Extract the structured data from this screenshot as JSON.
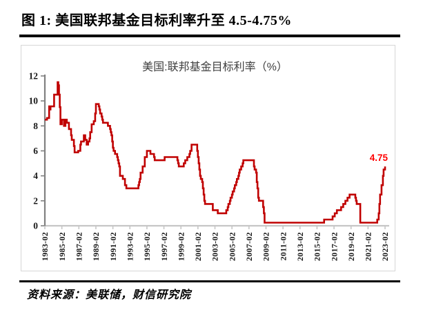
{
  "figure": {
    "title": "图 1:  美国联邦基金目标利率升至 4.5-4.75%"
  },
  "source": {
    "text": "资料来源：美联储，财信研究院"
  },
  "chart_data": {
    "type": "line",
    "title": "美国:联邦基金目标利率（%）",
    "xlabel": "",
    "ylabel": "",
    "ylim": [
      0,
      12
    ],
    "grid": false,
    "legend_position": "none",
    "y_ticks": [
      0,
      2,
      4,
      6,
      8,
      10,
      12
    ],
    "x_ticks": [
      "1983-02",
      "1985-02",
      "1987-02",
      "1989-02",
      "1991-02",
      "1993-02",
      "1995-02",
      "1997-02",
      "1999-02",
      "2001-02",
      "2003-02",
      "2005-02",
      "2007-02",
      "2009-02",
      "2011-02",
      "2013-02",
      "2015-02",
      "2017-02",
      "2019-02",
      "2021-02",
      "2023-02"
    ],
    "x_start": "1983-02",
    "x_end": "2023-02",
    "end_label": "4.75",
    "series_name": "美国:联邦基金目标利率(%)",
    "step_breakpoints": [
      [
        "1983-02",
        8.5
      ],
      [
        "1983-05",
        8.63
      ],
      [
        "1983-08",
        9.56
      ],
      [
        "1983-09",
        9.31
      ],
      [
        "1983-10",
        9.56
      ],
      [
        "1984-03",
        10.5
      ],
      [
        "1984-08",
        11.5
      ],
      [
        "1984-09",
        11.25
      ],
      [
        "1984-10",
        10.5
      ],
      [
        "1984-11",
        9.5
      ],
      [
        "1984-12",
        8.13
      ],
      [
        "1985-02",
        8.5
      ],
      [
        "1985-05",
        8.0
      ],
      [
        "1985-07",
        8.5
      ],
      [
        "1985-09",
        8.25
      ],
      [
        "1985-12",
        7.75
      ],
      [
        "1986-03",
        7.25
      ],
      [
        "1986-04",
        6.88
      ],
      [
        "1986-07",
        6.38
      ],
      [
        "1986-08",
        5.88
      ],
      [
        "1987-01",
        6.0
      ],
      [
        "1987-04",
        6.5
      ],
      [
        "1987-05",
        6.75
      ],
      [
        "1987-09",
        7.25
      ],
      [
        "1987-11",
        6.88
      ],
      [
        "1988-01",
        6.5
      ],
      [
        "1988-03",
        6.75
      ],
      [
        "1988-05",
        7.0
      ],
      [
        "1988-06",
        7.5
      ],
      [
        "1988-08",
        8.13
      ],
      [
        "1988-11",
        8.38
      ],
      [
        "1989-01",
        9.0
      ],
      [
        "1989-02",
        9.75
      ],
      [
        "1989-06",
        9.56
      ],
      [
        "1989-07",
        9.31
      ],
      [
        "1989-08",
        9.0
      ],
      [
        "1989-10",
        8.75
      ],
      [
        "1989-11",
        8.5
      ],
      [
        "1989-12",
        8.25
      ],
      [
        "1990-07",
        8.0
      ],
      [
        "1990-10",
        7.75
      ],
      [
        "1990-11",
        7.5
      ],
      [
        "1990-12",
        7.25
      ],
      [
        "1991-01",
        6.75
      ],
      [
        "1991-02",
        6.25
      ],
      [
        "1991-03",
        6.0
      ],
      [
        "1991-05",
        5.75
      ],
      [
        "1991-08",
        5.5
      ],
      [
        "1991-09",
        5.25
      ],
      [
        "1991-10",
        5.0
      ],
      [
        "1991-11",
        4.75
      ],
      [
        "1991-12",
        4.0
      ],
      [
        "1992-04",
        3.75
      ],
      [
        "1992-07",
        3.25
      ],
      [
        "1992-09",
        3.0
      ],
      [
        "1994-02",
        3.25
      ],
      [
        "1994-03",
        3.5
      ],
      [
        "1994-04",
        3.75
      ],
      [
        "1994-05",
        4.25
      ],
      [
        "1994-08",
        4.75
      ],
      [
        "1994-11",
        5.5
      ],
      [
        "1995-02",
        6.0
      ],
      [
        "1995-07",
        5.75
      ],
      [
        "1995-12",
        5.5
      ],
      [
        "1996-01",
        5.25
      ],
      [
        "1997-03",
        5.5
      ],
      [
        "1998-09",
        5.25
      ],
      [
        "1998-10",
        5.0
      ],
      [
        "1998-11",
        4.75
      ],
      [
        "1999-06",
        5.0
      ],
      [
        "1999-08",
        5.25
      ],
      [
        "1999-11",
        5.5
      ],
      [
        "2000-02",
        5.75
      ],
      [
        "2000-03",
        6.0
      ],
      [
        "2000-05",
        6.5
      ],
      [
        "2001-01",
        6.0
      ],
      [
        "2001-02",
        5.5
      ],
      [
        "2001-03",
        5.0
      ],
      [
        "2001-04",
        4.5
      ],
      [
        "2001-05",
        4.0
      ],
      [
        "2001-06",
        3.75
      ],
      [
        "2001-08",
        3.5
      ],
      [
        "2001-09",
        3.0
      ],
      [
        "2001-10",
        2.5
      ],
      [
        "2001-11",
        2.0
      ],
      [
        "2001-12",
        1.75
      ],
      [
        "2002-11",
        1.25
      ],
      [
        "2003-06",
        1.0
      ],
      [
        "2004-06",
        1.25
      ],
      [
        "2004-08",
        1.5
      ],
      [
        "2004-09",
        1.75
      ],
      [
        "2004-11",
        2.0
      ],
      [
        "2004-12",
        2.25
      ],
      [
        "2005-02",
        2.5
      ],
      [
        "2005-03",
        2.75
      ],
      [
        "2005-05",
        3.0
      ],
      [
        "2005-06",
        3.25
      ],
      [
        "2005-08",
        3.5
      ],
      [
        "2005-09",
        3.75
      ],
      [
        "2005-11",
        4.0
      ],
      [
        "2005-12",
        4.25
      ],
      [
        "2006-01",
        4.5
      ],
      [
        "2006-03",
        4.75
      ],
      [
        "2006-05",
        5.0
      ],
      [
        "2006-06",
        5.25
      ],
      [
        "2007-09",
        4.75
      ],
      [
        "2007-10",
        4.5
      ],
      [
        "2007-12",
        4.25
      ],
      [
        "2008-01",
        3.5
      ],
      [
        "2008-02",
        3.0
      ],
      [
        "2008-03",
        2.25
      ],
      [
        "2008-04",
        2.0
      ],
      [
        "2008-10",
        1.5
      ],
      [
        "2008-11",
        1.0
      ],
      [
        "2008-12",
        0.25
      ],
      [
        "2015-12",
        0.5
      ],
      [
        "2016-12",
        0.75
      ],
      [
        "2017-03",
        1.0
      ],
      [
        "2017-06",
        1.25
      ],
      [
        "2017-12",
        1.5
      ],
      [
        "2018-03",
        1.75
      ],
      [
        "2018-06",
        2.0
      ],
      [
        "2018-09",
        2.25
      ],
      [
        "2018-12",
        2.5
      ],
      [
        "2019-08",
        2.25
      ],
      [
        "2019-09",
        2.0
      ],
      [
        "2019-10",
        1.75
      ],
      [
        "2020-03",
        0.25
      ],
      [
        "2022-03",
        0.5
      ],
      [
        "2022-05",
        1.0
      ],
      [
        "2022-06",
        1.75
      ],
      [
        "2022-07",
        2.5
      ],
      [
        "2022-09",
        3.25
      ],
      [
        "2022-11",
        4.0
      ],
      [
        "2022-12",
        4.5
      ],
      [
        "2023-02",
        4.75
      ]
    ],
    "colors": {
      "line": "#C00000",
      "end_label": "#FF0000",
      "y_axis": "#808080",
      "x_axis": "#C6C6C6",
      "tick_text": "#1A1A1A",
      "title_text": "#404040"
    }
  }
}
